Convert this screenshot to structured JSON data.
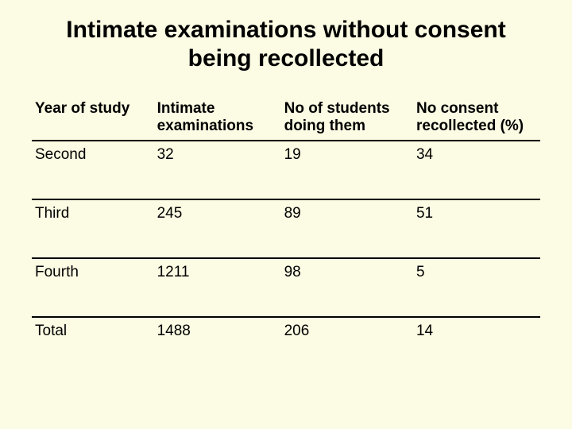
{
  "slide": {
    "background_color": "#fcfbe3",
    "title": "Intimate examinations without consent being recollected",
    "title_fontsize": 30,
    "title_weight": "bold",
    "title_align": "center"
  },
  "table": {
    "type": "table",
    "border_color": "#000000",
    "border_width": 2,
    "header_fontsize": 19,
    "cell_fontsize": 19,
    "font_family": "Verdana",
    "text_color": "#000000",
    "columns": [
      {
        "label": "Year of study",
        "width_pct": 24,
        "align": "left"
      },
      {
        "label": "Intimate examinations",
        "width_pct": 25,
        "align": "left"
      },
      {
        "label": "No of students doing them",
        "width_pct": 26,
        "align": "left"
      },
      {
        "label": "No consent recollected (%)",
        "width_pct": 25,
        "align": "left"
      }
    ],
    "rows": [
      {
        "year": "Second",
        "exams": "32",
        "students": "19",
        "pct": "34"
      },
      {
        "year": "Third",
        "exams": "245",
        "students": "89",
        "pct": "51"
      },
      {
        "year": "Fourth",
        "exams": "1211",
        "students": "98",
        "pct": "5"
      },
      {
        "year": "Total",
        "exams": "1488",
        "students": "206",
        "pct": "14"
      }
    ]
  }
}
